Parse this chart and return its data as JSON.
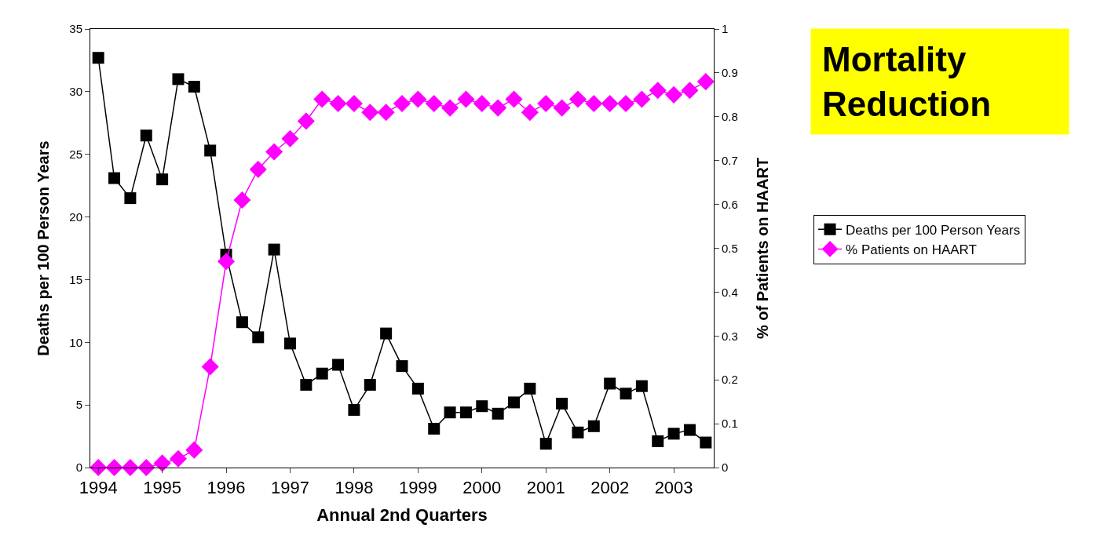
{
  "chart_data": {
    "type": "line",
    "xlabel": "Annual 2nd Quarters",
    "ylabel": "Deaths per 100 Person Years",
    "y2label": "% of Patients on HAART",
    "categories": [
      "1994",
      null,
      null,
      null,
      "1995",
      null,
      null,
      null,
      "1996",
      null,
      null,
      null,
      "1997",
      null,
      null,
      null,
      "1998",
      null,
      null,
      null,
      "1999",
      null,
      null,
      null,
      "2000",
      null,
      null,
      null,
      "2001",
      null,
      null,
      null,
      "2002",
      null,
      null,
      null,
      "2003",
      null,
      null
    ],
    "series": [
      {
        "name": "Deaths per 100 Person Years",
        "color": "#000000",
        "marker": "square",
        "values": [
          32.7,
          23.1,
          21.5,
          26.5,
          23.0,
          31.0,
          30.4,
          25.3,
          17.0,
          11.6,
          10.4,
          17.4,
          9.9,
          6.6,
          7.5,
          8.2,
          4.6,
          6.6,
          10.7,
          8.1,
          6.3,
          3.1,
          4.4,
          4.4,
          4.9,
          4.3,
          5.2,
          6.3,
          1.9,
          5.1,
          2.8,
          3.3,
          6.7,
          5.9,
          6.5,
          2.1,
          2.7,
          3.0,
          2.0
        ]
      },
      {
        "name": "% Patients on HAART",
        "color": "#ff00ff",
        "marker": "diamond",
        "axis": "y2",
        "values": [
          0,
          0,
          0,
          0,
          0.01,
          0.02,
          0.04,
          0.23,
          0.47,
          0.61,
          0.68,
          0.72,
          0.75,
          0.79,
          0.84,
          0.83,
          0.83,
          0.81,
          0.81,
          0.83,
          0.84,
          0.83,
          0.82,
          0.84,
          0.83,
          0.82,
          0.84,
          0.81,
          0.83,
          0.82,
          0.84,
          0.83,
          0.83,
          0.83,
          0.84,
          0.86,
          0.85,
          0.86,
          0.88
        ]
      }
    ],
    "ylim": [
      0,
      35
    ],
    "yticks": [
      0,
      5,
      10,
      15,
      20,
      25,
      30,
      35
    ],
    "y2lim": [
      0,
      1
    ],
    "y2ticks": [
      0,
      0.1,
      0.2,
      0.3,
      0.4,
      0.5,
      0.6,
      0.7,
      0.8,
      0.9,
      1
    ],
    "annotations": [
      "Mortality Reduction"
    ],
    "legend": "right",
    "grid": false,
    "line_style": "solid"
  }
}
